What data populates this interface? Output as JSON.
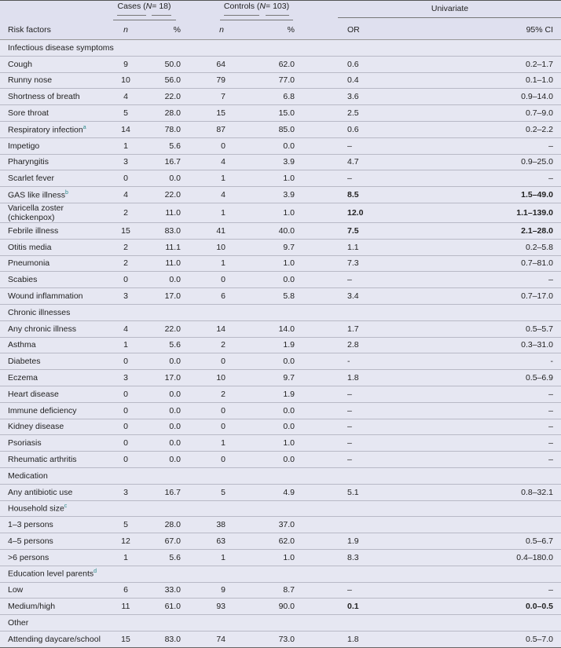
{
  "header": {
    "cases": {
      "pre": "Cases (",
      "n_sym": "N",
      "post": " = 18)"
    },
    "controls": {
      "pre": "Controls (",
      "n_sym": "N",
      "post": " = 103)"
    },
    "univariate": "Univariate",
    "risk_factors": "Risk factors",
    "n": "n",
    "pct": "%",
    "or": "OR",
    "ci": "95% CI"
  },
  "rows": [
    {
      "section": "Infectious disease symptoms"
    },
    {
      "label": "Cough",
      "cn": "9",
      "cp": "50.0",
      "kn": "64",
      "kp": "62.0",
      "or": "0.6",
      "ci": "0.2–1.7"
    },
    {
      "label": "Runny nose",
      "cn": "10",
      "cp": "56.0",
      "kn": "79",
      "kp": "77.0",
      "or": "0.4",
      "ci": "0.1–1.0"
    },
    {
      "label": "Shortness of breath",
      "cn": "4",
      "cp": "22.0",
      "kn": "7",
      "kp": "6.8",
      "or": "3.6",
      "ci": "0.9–14.0"
    },
    {
      "label": "Sore throat",
      "cn": "5",
      "cp": "28.0",
      "kn": "15",
      "kp": "15.0",
      "or": "2.5",
      "ci": "0.7–9.0"
    },
    {
      "label": "Respiratory infection",
      "sup": "a",
      "cn": "14",
      "cp": "78.0",
      "kn": "87",
      "kp": "85.0",
      "or": "0.6",
      "ci": "0.2–2.2"
    },
    {
      "label": "Impetigo",
      "cn": "1",
      "cp": "5.6",
      "kn": "0",
      "kp": "0.0",
      "or": "–",
      "ci": "–"
    },
    {
      "label": "Pharyngitis",
      "cn": "3",
      "cp": "16.7",
      "kn": "4",
      "kp": "3.9",
      "or": "4.7",
      "ci": "0.9–25.0"
    },
    {
      "label": "Scarlet fever",
      "cn": "0",
      "cp": "0.0",
      "kn": "1",
      "kp": "1.0",
      "or": "–",
      "ci": "–"
    },
    {
      "label": "GAS like illness",
      "sup": "b",
      "cn": "4",
      "cp": "22.0",
      "kn": "4",
      "kp": "3.9",
      "or": "8.5",
      "ci": "1.5–49.0",
      "bold": true
    },
    {
      "label": "Varicella zoster (chickenpox)",
      "cn": "2",
      "cp": "11.0",
      "kn": "1",
      "kp": "1.0",
      "or": "12.0",
      "ci": "1.1–139.0",
      "bold": true
    },
    {
      "label": "Febrile illness",
      "cn": "15",
      "cp": "83.0",
      "kn": "41",
      "kp": "40.0",
      "or": "7.5",
      "ci": "2.1–28.0",
      "bold": true
    },
    {
      "label": "Otitis media",
      "cn": "2",
      "cp": "11.1",
      "kn": "10",
      "kp": "9.7",
      "or": "1.1",
      "ci": "0.2–5.8"
    },
    {
      "label": "Pneumonia",
      "cn": "2",
      "cp": "11.0",
      "kn": "1",
      "kp": "1.0",
      "or": "7.3",
      "ci": "0.7–81.0"
    },
    {
      "label": "Scabies",
      "cn": "0",
      "cp": "0.0",
      "kn": "0",
      "kp": "0.0",
      "or": "–",
      "ci": "–"
    },
    {
      "label": "Wound inflammation",
      "cn": "3",
      "cp": "17.0",
      "kn": "6",
      "kp": "5.8",
      "or": "3.4",
      "ci": "0.7–17.0"
    },
    {
      "section": "Chronic illnesses"
    },
    {
      "label": "Any chronic illness",
      "cn": "4",
      "cp": "22.0",
      "kn": "14",
      "kp": "14.0",
      "or": "1.7",
      "ci": "0.5–5.7"
    },
    {
      "label": "Asthma",
      "cn": "1",
      "cp": "5.6",
      "kn": "2",
      "kp": "1.9",
      "or": "2.8",
      "ci": "0.3–31.0"
    },
    {
      "label": "Diabetes",
      "cn": "0",
      "cp": "0.0",
      "kn": "0",
      "kp": "0.0",
      "or": "-",
      "ci": "-"
    },
    {
      "label": "Eczema",
      "cn": "3",
      "cp": "17.0",
      "kn": "10",
      "kp": "9.7",
      "or": "1.8",
      "ci": "0.5–6.9"
    },
    {
      "label": "Heart disease",
      "cn": "0",
      "cp": "0.0",
      "kn": "2",
      "kp": "1.9",
      "or": "–",
      "ci": "–"
    },
    {
      "label": "Immune deficiency",
      "cn": "0",
      "cp": "0.0",
      "kn": "0",
      "kp": "0.0",
      "or": "–",
      "ci": "–"
    },
    {
      "label": "Kidney disease",
      "cn": "0",
      "cp": "0.0",
      "kn": "0",
      "kp": "0.0",
      "or": "–",
      "ci": "–"
    },
    {
      "label": "Psoriasis",
      "cn": "0",
      "cp": "0.0",
      "kn": "1",
      "kp": "1.0",
      "or": "–",
      "ci": "–"
    },
    {
      "label": "Rheumatic arthritis",
      "cn": "0",
      "cp": "0.0",
      "kn": "0",
      "kp": "0.0",
      "or": "–",
      "ci": "–"
    },
    {
      "section": "Medication"
    },
    {
      "label": "Any antibiotic use",
      "cn": "3",
      "cp": "16.7",
      "kn": "5",
      "kp": "4.9",
      "or": "5.1",
      "ci": "0.8–32.1"
    },
    {
      "section": "Household size",
      "sup": "c"
    },
    {
      "label": "1–3 persons",
      "cn": "5",
      "cp": "28.0",
      "kn": "38",
      "kp": "37.0",
      "or": "",
      "ci": ""
    },
    {
      "label": "4–5 persons",
      "cn": "12",
      "cp": "67.0",
      "kn": "63",
      "kp": "62.0",
      "or": "1.9",
      "ci": "0.5–6.7"
    },
    {
      "label": ">6 persons",
      "cn": "1",
      "cp": "5.6",
      "kn": "1",
      "kp": "1.0",
      "or": "8.3",
      "ci": "0.4–180.0"
    },
    {
      "section": "Education level parents",
      "sup": "d"
    },
    {
      "label": "Low",
      "cn": "6",
      "cp": "33.0",
      "kn": "9",
      "kp": "8.7",
      "or": "–",
      "ci": "–"
    },
    {
      "label": "Medium/high",
      "cn": "11",
      "cp": "61.0",
      "kn": "93",
      "kp": "90.0",
      "or": "0.1",
      "ci": "0.0–0.5",
      "bold": true
    },
    {
      "section": "Other"
    },
    {
      "label": "Attending daycare/school",
      "cn": "15",
      "cp": "83.0",
      "kn": "74",
      "kp": "73.0",
      "or": "1.8",
      "ci": "0.5–7.0"
    }
  ],
  "colors": {
    "background": "#e6e7f2",
    "header": "#dfe0ef",
    "footnote_marker": "#2a8a8a"
  }
}
